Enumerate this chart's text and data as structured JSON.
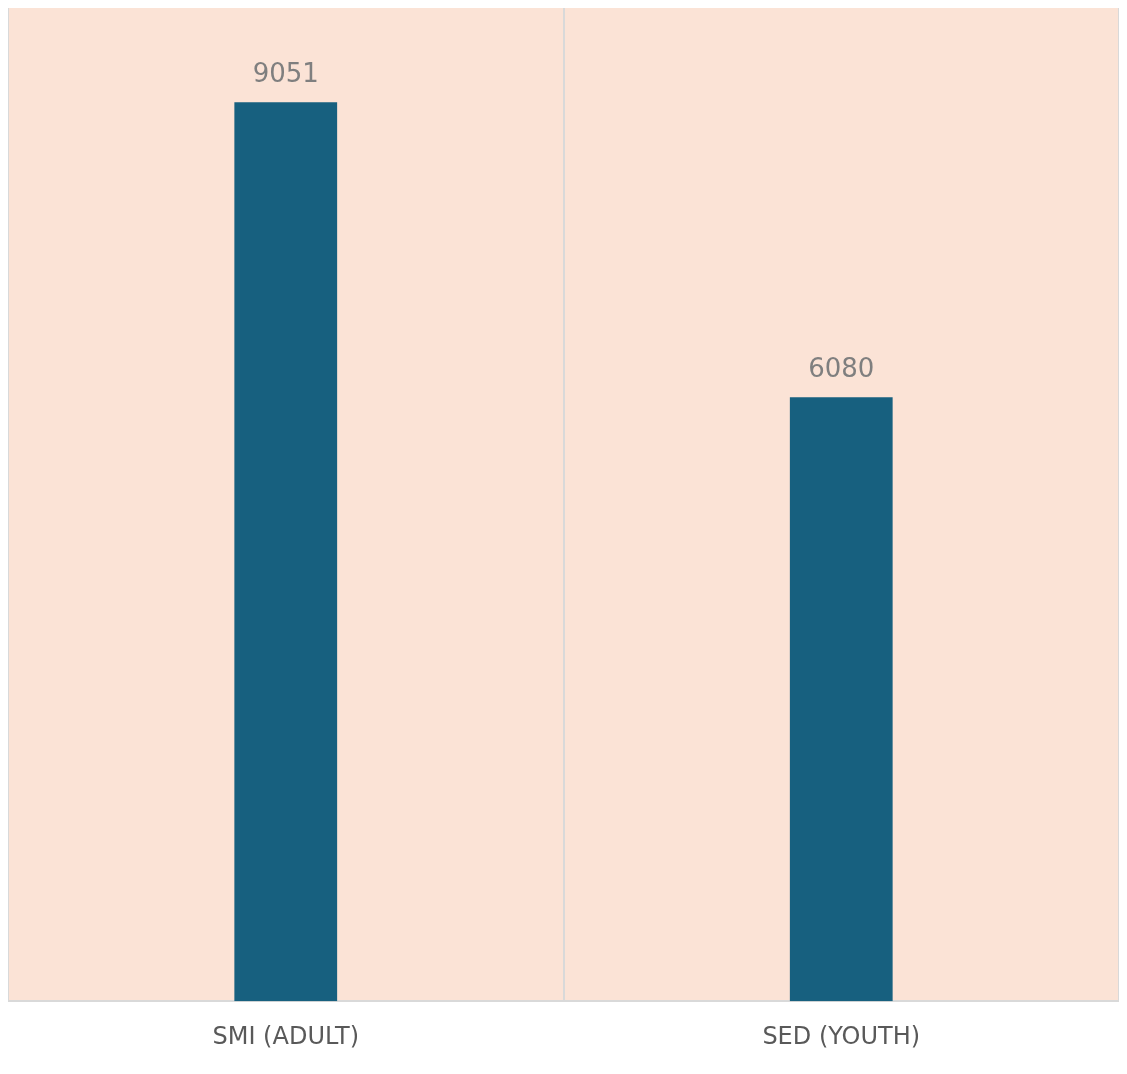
{
  "chart_data": {
    "type": "bar",
    "categories": [
      "SMI (ADULT)",
      "SED (YOUTH)"
    ],
    "values": [
      9051,
      6080
    ],
    "color": "#17607f",
    "data_labels": true,
    "grid": "x"
  }
}
